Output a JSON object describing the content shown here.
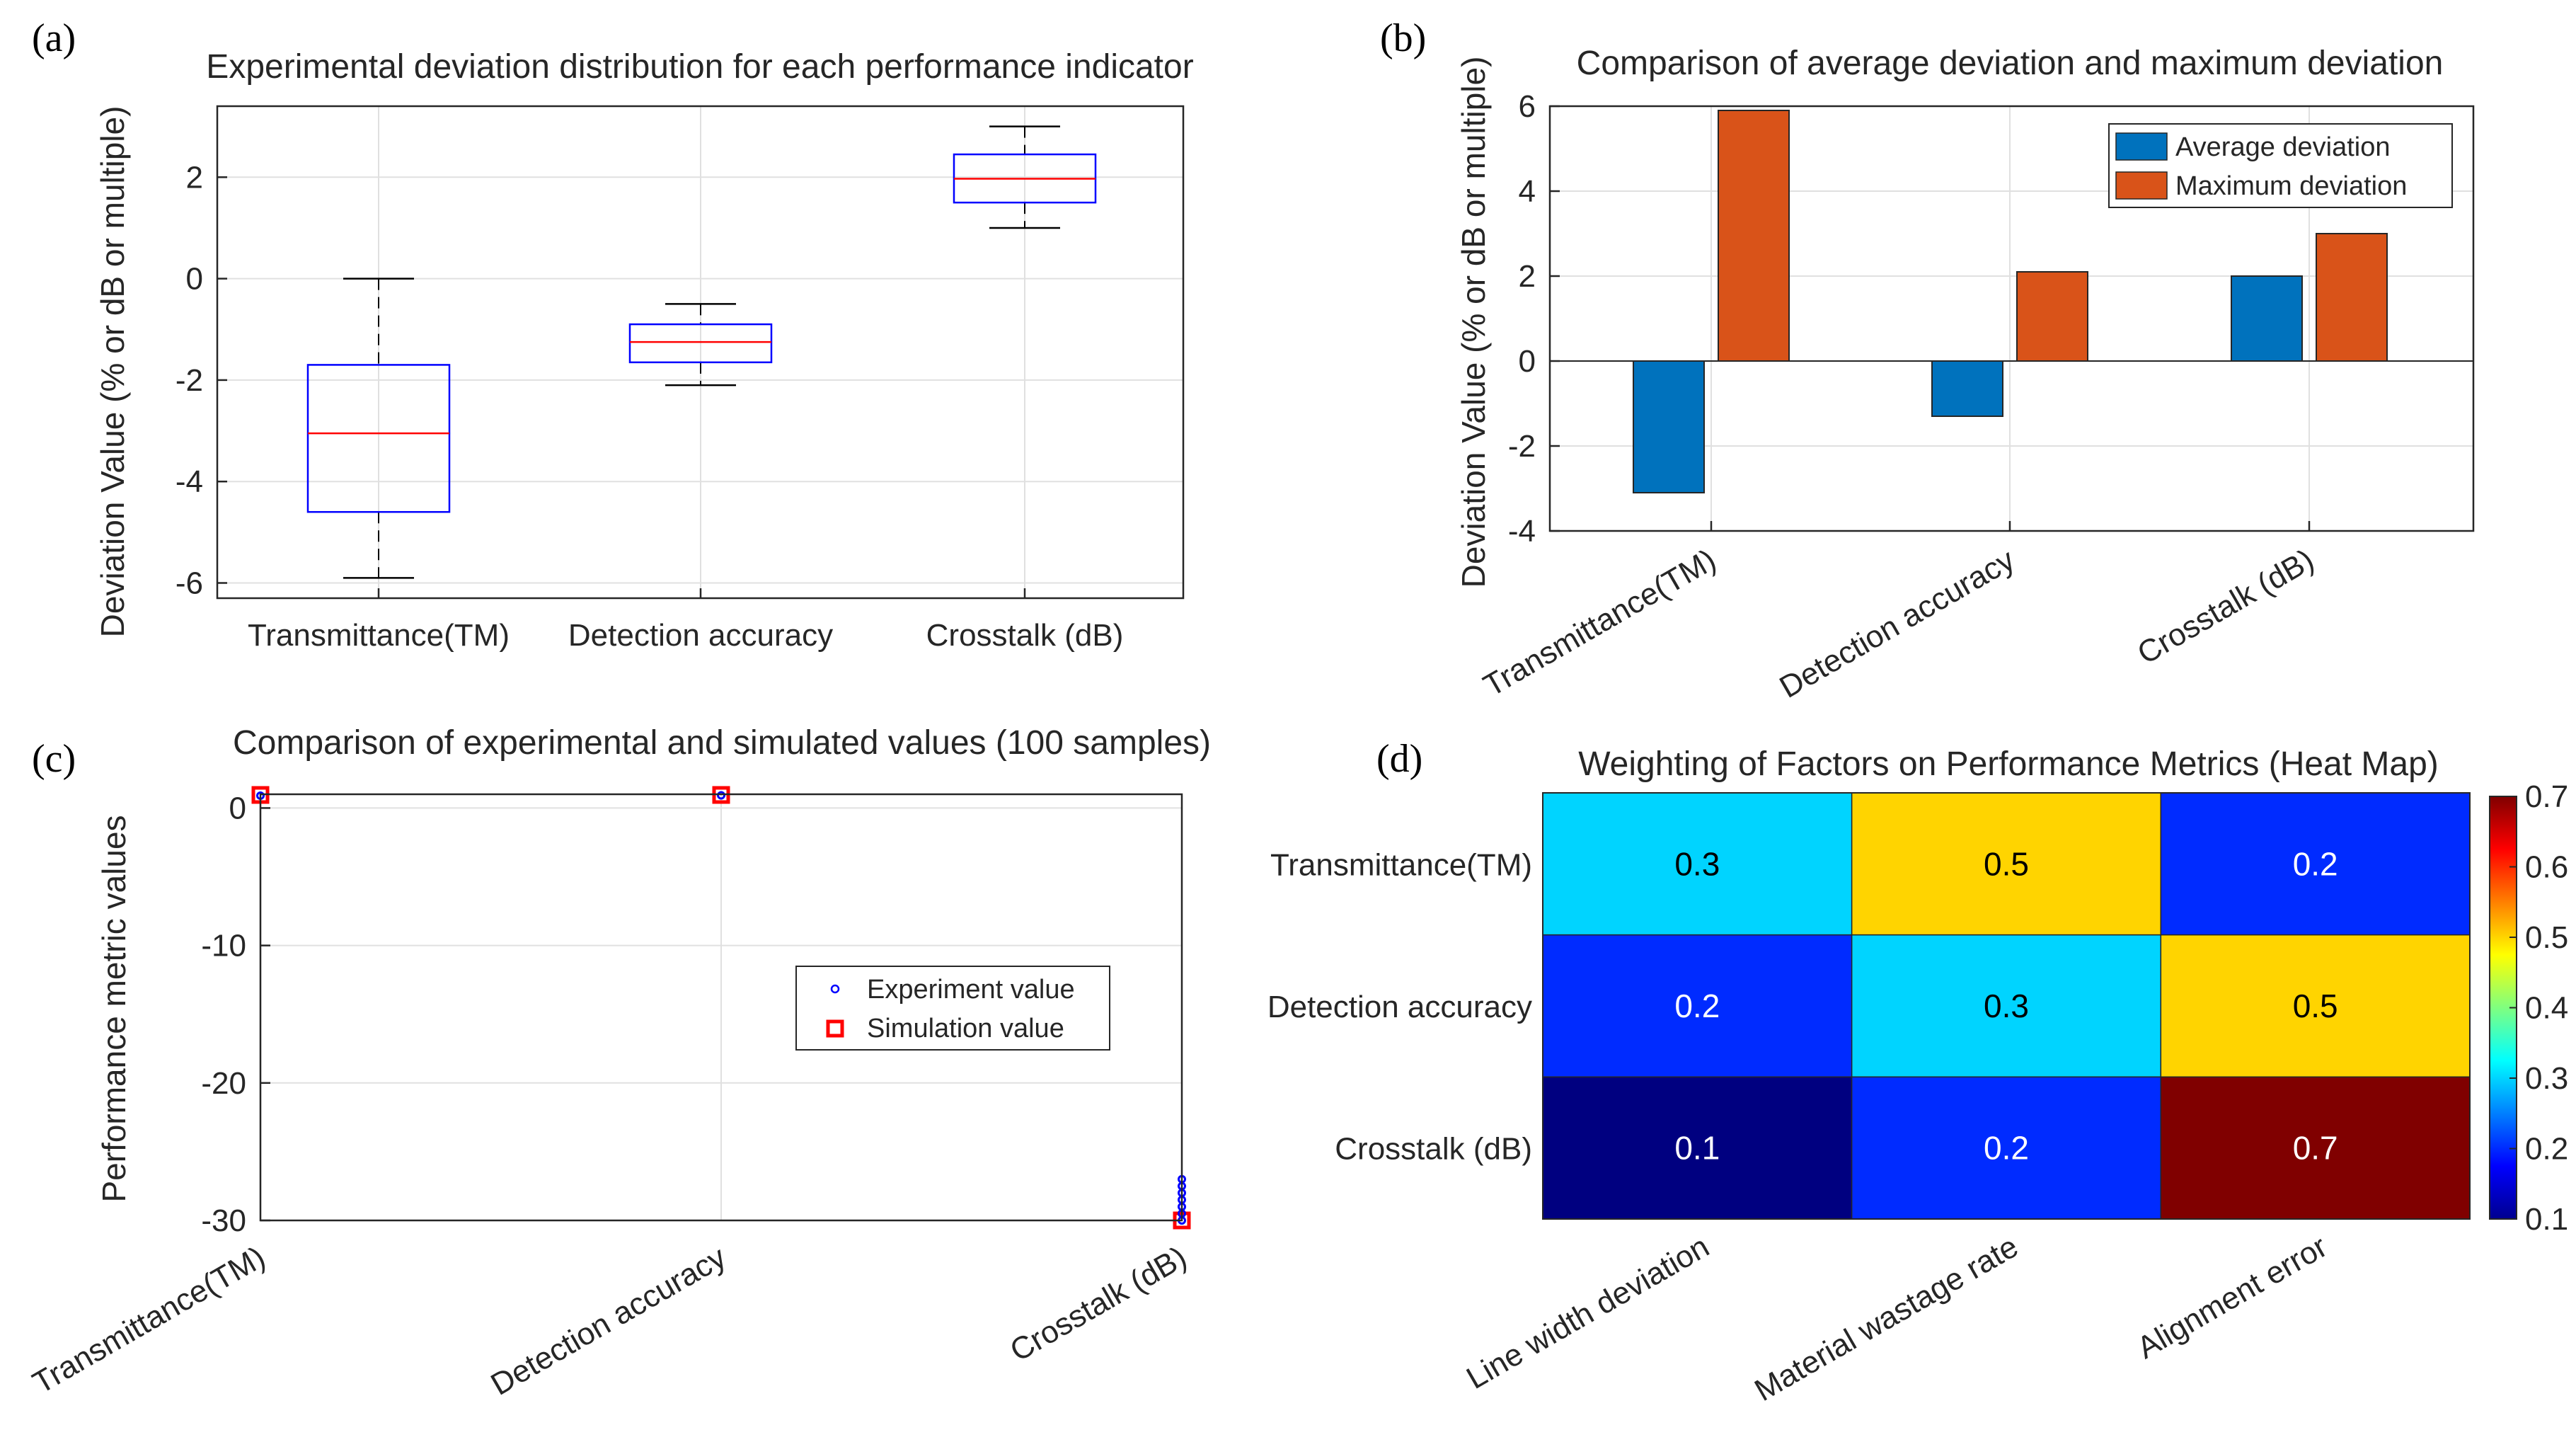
{
  "chart_data": [
    {
      "id": "a",
      "panel_label": "(a)",
      "type": "box",
      "title": "Experimental deviation distribution for each performance indicator",
      "ylabel": "Deviation Value (% or dB or multiple)",
      "categories": [
        "Transmittance(TM)",
        "Detection accuracy",
        "Crosstalk (dB)"
      ],
      "ylim": [
        -6.3,
        3.4
      ],
      "yticks": [
        -6,
        -4,
        -2,
        0,
        2
      ],
      "grid": true,
      "boxes": [
        {
          "whisker_low": -5.9,
          "q1": -4.6,
          "median": -3.05,
          "q3": -1.7,
          "whisker_high": 0.0
        },
        {
          "whisker_low": -2.1,
          "q1": -1.65,
          "median": -1.25,
          "q3": -0.9,
          "whisker_high": -0.5
        },
        {
          "whisker_low": 1.0,
          "q1": 1.5,
          "median": 1.97,
          "q3": 2.45,
          "whisker_high": 3.0
        }
      ]
    },
    {
      "id": "b",
      "panel_label": "(b)",
      "type": "bar",
      "title": "Comparison of average deviation and maximum deviation",
      "ylabel": "Deviation Value (% or dB or multiple)",
      "categories": [
        "Transmittance(TM)",
        "Detection accuracy",
        "Crosstalk (dB)"
      ],
      "ylim": [
        -4,
        6
      ],
      "yticks": [
        -4,
        -2,
        0,
        2,
        4,
        6
      ],
      "legend_position": "top-right",
      "series": [
        {
          "name": "Average deviation",
          "color": "#0072BD",
          "values": [
            -3.1,
            -1.3,
            2.0
          ]
        },
        {
          "name": "Maximum deviation",
          "color": "#D95319",
          "values": [
            5.9,
            2.1,
            3.0
          ]
        }
      ]
    },
    {
      "id": "c",
      "panel_label": "(c)",
      "type": "scatter",
      "title": "Comparison of experimental and simulated values (100 samples)",
      "ylabel": "Performance metric values",
      "categories": [
        "Transmittance(TM)",
        "Detection accuracy",
        "Crosstalk (dB)"
      ],
      "ylim": [
        -30,
        1
      ],
      "yticks": [
        -30,
        -20,
        -10,
        0
      ],
      "legend_position": "center-right",
      "series": [
        {
          "name": "Experiment value",
          "color": "#0000FF",
          "marker": "circle",
          "points": [
            [
              1,
              0.9
            ],
            [
              2,
              0.92
            ],
            [
              3,
              -27.0
            ],
            [
              3,
              -27.5
            ],
            [
              3,
              -28.0
            ],
            [
              3,
              -28.5
            ],
            [
              3,
              -29.0
            ],
            [
              3,
              -29.5
            ],
            [
              3,
              -30.0
            ]
          ]
        },
        {
          "name": "Simulation value",
          "color": "#FF0000",
          "marker": "square",
          "points": [
            [
              1,
              0.95
            ],
            [
              2,
              0.95
            ],
            [
              3,
              -30.0
            ]
          ]
        }
      ]
    },
    {
      "id": "d",
      "panel_label": "(d)",
      "type": "heatmap",
      "title": "Weighting of Factors on Performance Metrics (Heat Map)",
      "rows": [
        "Transmittance(TM)",
        "Detection accuracy",
        "Crosstalk (dB)"
      ],
      "columns": [
        "Line width deviation",
        "Material wastage rate",
        "Alignment error"
      ],
      "values": [
        [
          0.3,
          0.5,
          0.2
        ],
        [
          0.2,
          0.3,
          0.5
        ],
        [
          0.1,
          0.2,
          0.7
        ]
      ],
      "colorbar": {
        "min": 0.1,
        "max": 0.7,
        "ticks": [
          0.1,
          0.2,
          0.3,
          0.4,
          0.5,
          0.6,
          0.7
        ],
        "colormap": "jet"
      }
    }
  ]
}
